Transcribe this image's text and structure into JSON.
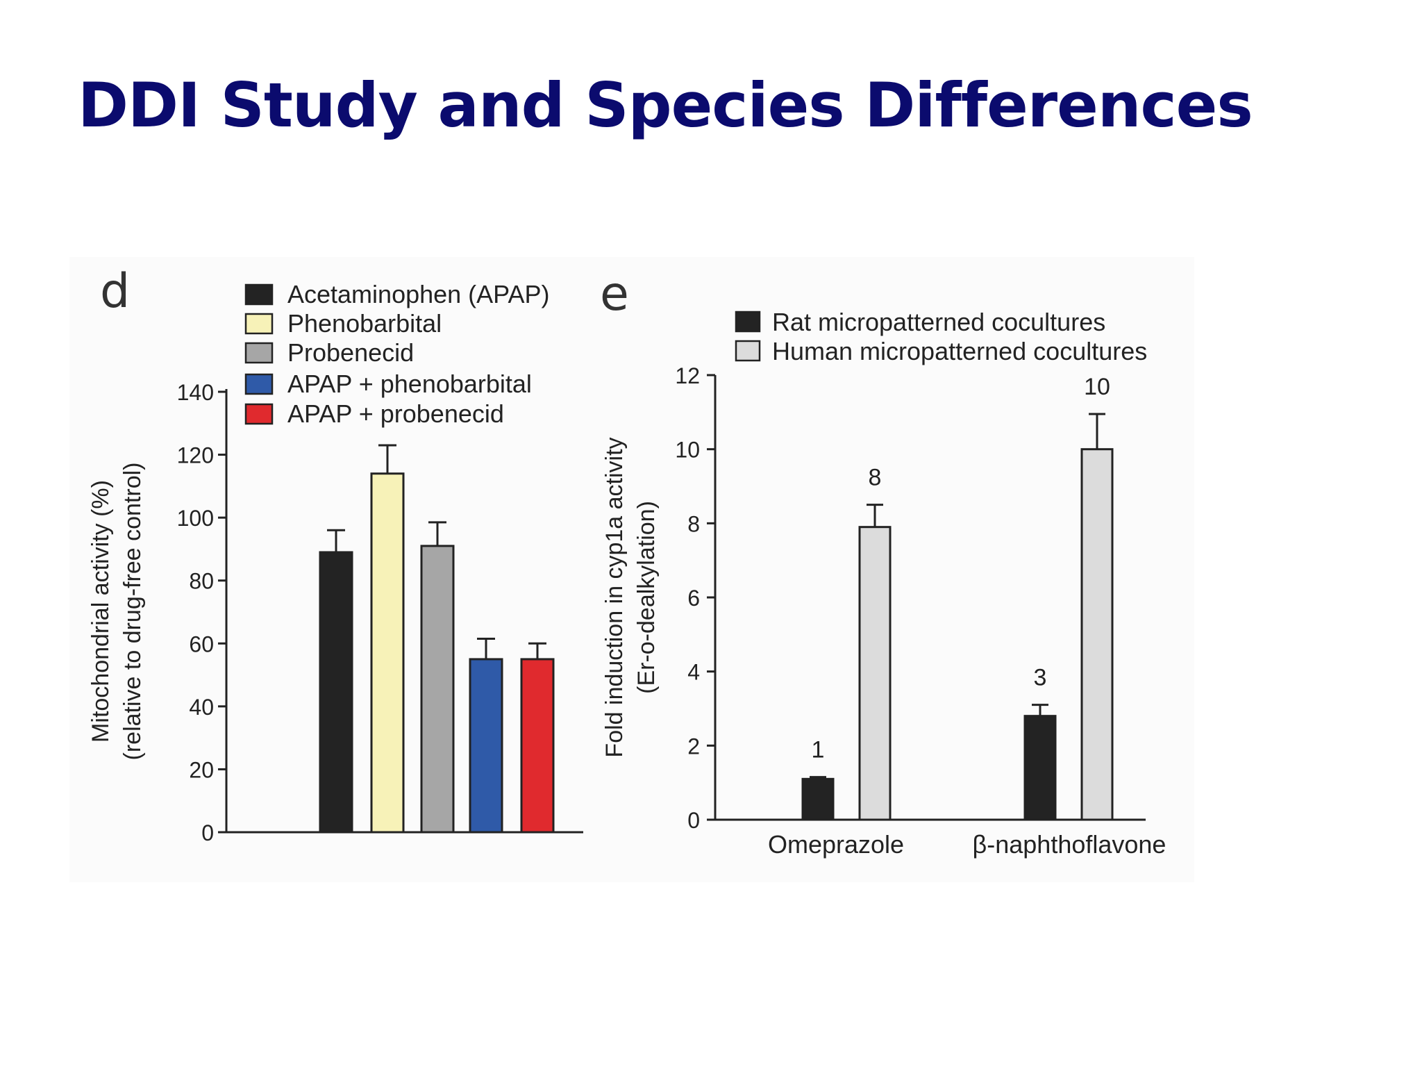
{
  "slide": {
    "title": "DDI Study and Species Differences",
    "title_color": "#0b0b6e"
  },
  "chart_data": [
    {
      "panel": "d",
      "type": "bar",
      "categories": [
        "Acetaminophen (APAP)",
        "Phenobarbital",
        "Probenecid",
        "APAP + phenobarbital",
        "APAP + probenecid"
      ],
      "values": [
        89,
        114,
        91,
        55,
        55
      ],
      "errors": [
        7,
        9,
        7.5,
        6.5,
        5
      ],
      "colors": [
        "#232323",
        "#f7f2b8",
        "#a6a6a6",
        "#2f5aa8",
        "#e02a2e"
      ],
      "legend": [
        "Acetaminophen (APAP)",
        "Phenobarbital",
        "Probenecid",
        "APAP + phenobarbital",
        "APAP + probenecid"
      ],
      "ylabel": "Mitochondrial activity (%)",
      "ylabel2": "(relative to drug-free control)",
      "ylim": [
        0,
        140
      ],
      "yticks": [
        0,
        20,
        40,
        60,
        80,
        100,
        120,
        140
      ],
      "legend_position": "top"
    },
    {
      "panel": "e",
      "type": "bar",
      "categories": [
        "Omeprazole",
        "β-naphthoflavone"
      ],
      "series": [
        {
          "name": "Rat micropatterned cocultures",
          "values": [
            1.1,
            2.8
          ],
          "errors": [
            0.05,
            0.3
          ],
          "labels": [
            "1",
            "3"
          ],
          "color": "#232323"
        },
        {
          "name": "Human micropatterned cocultures",
          "values": [
            7.9,
            10
          ],
          "errors": [
            0.6,
            0.95
          ],
          "labels": [
            "8",
            "10"
          ],
          "color": "#dcdcdc"
        }
      ],
      "ylabel": "Fold induction in cyp1a activity",
      "ylabel2": "(Er-o-dealkylation)",
      "ylim": [
        0,
        12
      ],
      "yticks": [
        0,
        2,
        4,
        6,
        8,
        10,
        12
      ],
      "legend_position": "top"
    }
  ]
}
